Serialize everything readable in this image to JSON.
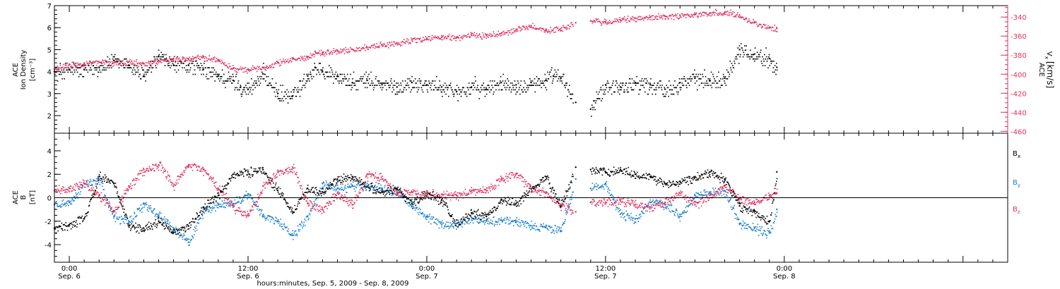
{
  "figure": {
    "x_time_range_hours": [
      -1.0,
      63.0
    ],
    "x_tick_interval_hours": 12,
    "x_minor_tick_hours": 1,
    "xlabel": "hours:minutes, Sep.  5, 2009 - Sep.  8, 2009",
    "x_ticks": [
      {
        "hour": 0,
        "time": "0:00",
        "date": "Sep. 6"
      },
      {
        "hour": 12,
        "time": "12:00",
        "date": "Sep. 6"
      },
      {
        "hour": 24,
        "time": "0:00",
        "date": "Sep. 7"
      },
      {
        "hour": 36,
        "time": "12:00",
        "date": "Sep. 7"
      },
      {
        "hour": 48,
        "time": "0:00",
        "date": "Sep. 8"
      }
    ],
    "colors": {
      "density": "#000000",
      "vx": "#e0315d",
      "bx": "#000000",
      "by": "#1a7fd0",
      "bz": "#e0315d",
      "axis": "#000000",
      "vx_axis": "#e0315d"
    }
  },
  "chart_data": [
    {
      "type": "scatter",
      "panel": "top",
      "ylabel_lines": [
        "ACE",
        "Ion Density"
      ],
      "ylabel_unit": "[cm⁻³]",
      "ylim": [
        1.2,
        7.0
      ],
      "y_ticks": [
        2,
        3,
        4,
        5,
        6,
        7
      ],
      "right_axis": {
        "label_main": "V",
        "label_sub": "x",
        "label_top": "ACE",
        "label_unit": "[km/s]",
        "ylim": [
          -462,
          -328
        ],
        "y_ticks": [
          -460,
          -440,
          -420,
          -400,
          -380,
          -360,
          -340
        ]
      },
      "gaps_hours": [
        [
          33.8,
          35.0
        ]
      ],
      "series": [
        {
          "name": "",
          "axis": "left",
          "x": [
            -1,
            0,
            1,
            2,
            3,
            4,
            5,
            6,
            7,
            8,
            9,
            10,
            11,
            11.5,
            12,
            13,
            14,
            15,
            16,
            16.5,
            17,
            18,
            19,
            20,
            21,
            22,
            23,
            24,
            25,
            26,
            27,
            28,
            29,
            30,
            31,
            32,
            32.5,
            33,
            34,
            35,
            36,
            37,
            38,
            39,
            40,
            41,
            42,
            43,
            44,
            45,
            46,
            47,
            47.5
          ],
          "values": [
            4.0,
            4.1,
            4.1,
            4.2,
            4.5,
            4.3,
            3.8,
            4.7,
            4.3,
            4.3,
            4.1,
            3.8,
            3.6,
            3.3,
            3.2,
            3.9,
            3.0,
            2.9,
            3.8,
            4.2,
            4.0,
            3.8,
            3.5,
            3.6,
            3.4,
            3.3,
            3.5,
            3.4,
            3.3,
            3.1,
            3.3,
            3.2,
            3.5,
            3.4,
            3.5,
            3.6,
            3.8,
            3.7,
            2.6,
            2.3,
            3.4,
            3.3,
            3.5,
            3.4,
            3.2,
            3.5,
            3.7,
            3.6,
            3.7,
            5.0,
            4.8,
            4.6,
            4.2
          ]
        },
        {
          "name": "",
          "axis": "right",
          "x": [
            -1,
            0,
            1,
            2,
            3,
            4,
            5,
            6,
            7,
            8,
            9,
            10,
            11,
            12,
            13,
            14,
            15,
            16,
            16.5,
            17,
            18,
            19,
            20,
            21,
            22,
            23,
            24,
            25,
            26,
            27,
            28,
            29,
            30,
            31,
            32,
            33,
            34,
            35,
            36,
            37,
            38,
            39,
            40,
            41,
            42,
            43,
            44,
            45,
            46,
            47,
            47.5
          ],
          "values": [
            -395,
            -390,
            -389,
            -387,
            -388,
            -387,
            -389,
            -386,
            -384,
            -384,
            -382,
            -385,
            -394,
            -395,
            -393,
            -388,
            -384,
            -382,
            -376,
            -378,
            -375,
            -374,
            -372,
            -369,
            -367,
            -364,
            -362,
            -361,
            -361,
            -359,
            -359,
            -357,
            -353,
            -349,
            -354,
            -352,
            -346,
            -344,
            -345,
            -343,
            -341,
            -340,
            -339,
            -338,
            -337,
            -336,
            -335,
            -338,
            -346,
            -351,
            -352
          ]
        }
      ]
    },
    {
      "type": "scatter",
      "panel": "bottom",
      "ylabel_lines": [
        "ACE",
        "B"
      ],
      "ylabel_unit": "[nT]",
      "ylim": [
        -5.5,
        5.5
      ],
      "y_ticks": [
        -4,
        -2,
        0,
        2,
        4
      ],
      "zero_line": true,
      "legend_placement": "right",
      "series": [
        {
          "name": "B",
          "legend_sub": "x",
          "x": [
            -1,
            0,
            1,
            2,
            3,
            4,
            5,
            6,
            7,
            8,
            9,
            10,
            11,
            12,
            13,
            14,
            15,
            16,
            17,
            18,
            19,
            20,
            21,
            22,
            23,
            24,
            25,
            26,
            27,
            28,
            29,
            30,
            31,
            32,
            33,
            34,
            35,
            36,
            37,
            38,
            39,
            40,
            41,
            42,
            43,
            44,
            45,
            46,
            47,
            47.5
          ],
          "values": [
            -2.6,
            -2.3,
            -1.8,
            1.8,
            1.2,
            -2.4,
            -2.6,
            -2.0,
            -3.0,
            -2.4,
            -0.8,
            0.2,
            2.0,
            2.2,
            2.4,
            0.6,
            -1.2,
            0.8,
            0.5,
            1.6,
            1.8,
            1.0,
            0.5,
            0.8,
            -0.5,
            0.4,
            -0.2,
            -2.2,
            -1.3,
            -1.6,
            -0.2,
            -0.5,
            0.8,
            1.8,
            -0.7,
            2.6,
            2.4,
            2.2,
            2.4,
            2.0,
            1.8,
            1.2,
            1.4,
            1.8,
            2.2,
            1.6,
            -0.7,
            -1.2,
            -2.0,
            2.2
          ]
        },
        {
          "name": "B",
          "legend_sub": "y",
          "x": [
            -1,
            0,
            1,
            2,
            3,
            4,
            5,
            6,
            7,
            8,
            9,
            10,
            11,
            12,
            13,
            14,
            15,
            16,
            17,
            18,
            19,
            20,
            21,
            22,
            23,
            24,
            25,
            26,
            27,
            28,
            29,
            30,
            31,
            32,
            33,
            34,
            35,
            36,
            37,
            38,
            39,
            40,
            41,
            42,
            43,
            44,
            45,
            46,
            47,
            47.5
          ],
          "values": [
            -0.6,
            -0.4,
            1.2,
            1.6,
            -1.6,
            -2.1,
            -0.5,
            -1.5,
            -2.6,
            -3.8,
            -1.2,
            -0.6,
            -0.5,
            0.3,
            -1.5,
            -2.0,
            -3.2,
            -1.6,
            1.2,
            0.8,
            1.0,
            1.0,
            0.8,
            0.5,
            -0.6,
            -1.6,
            -2.3,
            -2.2,
            -1.7,
            -2.0,
            -1.9,
            -2.0,
            -2.4,
            -2.5,
            -2.8,
            1.6,
            0.8,
            1.2,
            -1.4,
            -1.8,
            -0.4,
            -0.6,
            -1.6,
            0.2,
            0.4,
            0.6,
            -2.2,
            -2.6,
            -3.0,
            -1.0
          ]
        },
        {
          "name": "B",
          "legend_sub": "z",
          "x": [
            -1,
            0,
            1,
            2,
            3,
            4,
            5,
            6,
            7,
            8,
            9,
            10,
            11,
            12,
            13,
            14,
            15,
            16,
            17,
            18,
            19,
            20,
            21,
            22,
            23,
            24,
            25,
            26,
            27,
            28,
            29,
            30,
            31,
            32,
            33,
            34,
            35,
            36,
            37,
            38,
            39,
            40,
            41,
            42,
            43,
            44,
            45,
            46,
            47,
            47.5
          ],
          "values": [
            0.6,
            0.8,
            1.2,
            0.2,
            -1.2,
            1.0,
            2.4,
            2.8,
            1.0,
            2.8,
            2.4,
            0.8,
            -0.8,
            -1.5,
            1.0,
            2.2,
            2.6,
            -0.5,
            -1.0,
            0.4,
            -0.6,
            2.0,
            1.6,
            0.4,
            0.5,
            0.4,
            0.3,
            0.2,
            0.6,
            0.6,
            1.6,
            2.0,
            0.8,
            0.4,
            -0.6,
            -1.2,
            -0.4,
            -0.4,
            -0.2,
            -0.6,
            -0.8,
            -0.4,
            0.4,
            -0.6,
            0.2,
            1.0,
            0.0,
            -0.4,
            0.2,
            0.4
          ]
        }
      ]
    }
  ]
}
